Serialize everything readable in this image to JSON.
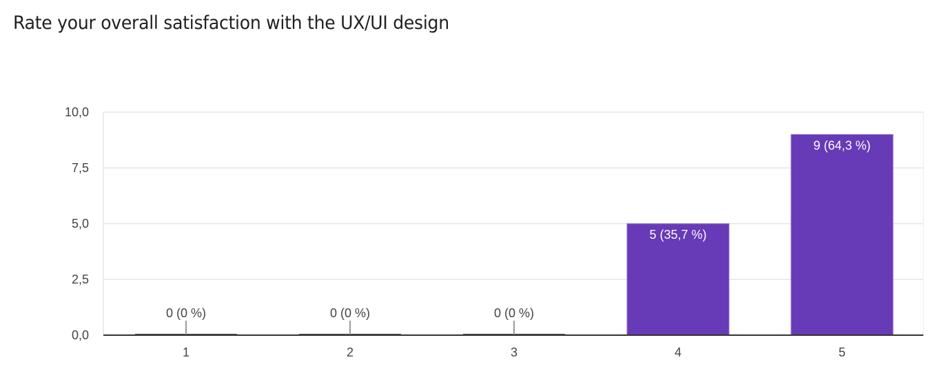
{
  "title": "Rate your overall satisfaction with the UX/UI design",
  "colors": {
    "bar": "#673ab7",
    "grid": "#ebebeb",
    "axis": "#333333",
    "text": "#444444",
    "zero_line": "#999999"
  },
  "chart_data": {
    "type": "bar",
    "title": "Rate your overall satisfaction with the UX/UI design",
    "xlabel": "",
    "ylabel": "",
    "categories": [
      "1",
      "2",
      "3",
      "4",
      "5"
    ],
    "values": [
      0,
      0,
      0,
      5,
      9
    ],
    "percentages": [
      "0 %",
      "0 %",
      "0 %",
      "35,7 %",
      "64,3 %"
    ],
    "data_labels": [
      "0 (0 %)",
      "0 (0 %)",
      "0 (0 %)",
      "5 (35,7 %)",
      "9 (64,3 %)"
    ],
    "ylim": [
      0,
      10
    ],
    "yticks": [
      "0,0",
      "2,5",
      "5,0",
      "7,5",
      "10,0"
    ],
    "grid": true,
    "legend": "none"
  }
}
